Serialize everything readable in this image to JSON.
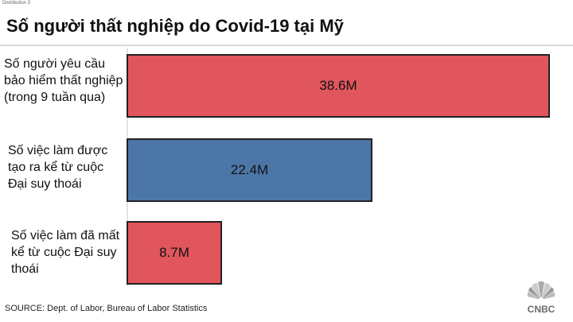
{
  "header": {
    "tag": "Distribution 3",
    "title": "Số người thất nghiệp do Covid-19 tại Mỹ"
  },
  "footer": {
    "source": "SOURCE: Dept. of Labor, Bureau of Labor Statistics",
    "logo_text": "CNBC"
  },
  "colors": {
    "red_bar": "#e0565c",
    "blue_bar": "#4d76a8"
  },
  "chart_data": {
    "type": "bar",
    "orientation": "horizontal",
    "title": "Số người thất nghiệp do Covid-19 tại Mỹ",
    "unit": "M",
    "xlabel": "",
    "ylabel": "",
    "grid": false,
    "categories": [
      [
        "Số người yêu cầu",
        "bảo hiểm thất nghiệp",
        "(trong 9 tuần qua)"
      ],
      [
        "Số việc làm được",
        "tạo ra kể từ cuộc",
        "Đại suy thoái"
      ],
      [
        "Số việc làm đã mất",
        "kể từ cuộc Đại suy",
        "thoái"
      ]
    ],
    "values": [
      38.6,
      22.4,
      8.7
    ],
    "value_labels": [
      "38.6M",
      "22.4M",
      "8.7M"
    ],
    "bar_colors": [
      "#e0565c",
      "#4d76a8",
      "#e0565c"
    ],
    "xlim": [
      0,
      38.6
    ]
  }
}
